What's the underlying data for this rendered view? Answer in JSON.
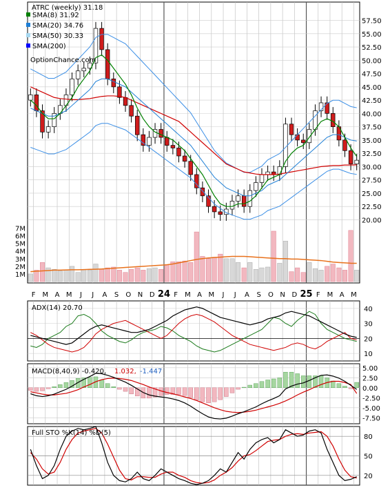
{
  "chart_data": {
    "type": "stock_chart",
    "symbol": "ATRC",
    "period": "weekly",
    "last_price": 31.18,
    "title": "ATRC (weekly) 31.18",
    "watermark": "OptionChance.com",
    "legend": [
      {
        "label": "SMA(8) 31.92",
        "color": "#008000"
      },
      {
        "label": "SMA(20) 34.76",
        "color": "#1e7fd6"
      },
      {
        "label": "SMA(50) 30.33",
        "color": "#a8d8f0"
      },
      {
        "label": "SMA(200)",
        "color": "#0000ff"
      }
    ],
    "x_labels": [
      "F",
      "M",
      "A",
      "M",
      "J",
      "J",
      "A",
      "S",
      "O",
      "N",
      "D",
      "24",
      "F",
      "M",
      "A",
      "M",
      "J",
      "J",
      "A",
      "S",
      "O",
      "N",
      "D",
      "25",
      "F",
      "M",
      "A",
      "M"
    ],
    "price_axis": {
      "ticks": [
        57.5,
        55.0,
        52.5,
        50.0,
        47.5,
        45.0,
        42.5,
        40.0,
        37.5,
        35.0,
        32.5,
        30.0,
        27.5,
        25.0,
        22.5,
        20.0
      ],
      "ylim": [
        18.5,
        59.0
      ]
    },
    "volume_axis": {
      "ticks": [
        "7M",
        "6M",
        "5M",
        "4M",
        "3M",
        "2M",
        "1M"
      ],
      "ylim_millions": [
        0,
        7.5
      ]
    },
    "price": {
      "close": [
        43.5,
        40.5,
        36.5,
        37.5,
        40.0,
        41.5,
        43.5,
        46.5,
        48.0,
        48.5,
        49.5,
        56.0,
        52.0,
        46.5,
        45.0,
        43.0,
        41.5,
        39.5,
        36.0,
        34.0,
        35.5,
        37.0,
        35.5,
        34.0,
        33.5,
        32.0,
        31.0,
        28.5,
        26.0,
        24.5,
        22.5,
        21.5,
        21.0,
        22.0,
        23.5,
        24.5,
        22.5,
        25.5,
        27.0,
        28.5,
        29.0,
        28.5,
        30.0,
        38.0,
        36.0,
        35.0,
        34.5,
        37.0,
        40.5,
        42.0,
        40.0,
        37.5,
        35.0,
        33.0,
        30.5,
        31.2
      ],
      "sma8": [
        42.5,
        41.5,
        40.0,
        39.0,
        39.0,
        40.0,
        41.5,
        43.0,
        45.0,
        46.5,
        48.0,
        50.5,
        51.0,
        50.0,
        48.5,
        47.0,
        45.5,
        43.5,
        41.0,
        39.0,
        37.5,
        36.5,
        36.0,
        35.5,
        35.0,
        34.0,
        33.0,
        31.5,
        30.0,
        28.5,
        26.5,
        24.5,
        23.0,
        22.5,
        22.5,
        23.0,
        23.0,
        23.5,
        24.5,
        26.0,
        27.5,
        28.0,
        28.5,
        31.0,
        32.5,
        33.5,
        34.0,
        35.5,
        37.0,
        38.5,
        39.0,
        38.5,
        37.5,
        35.5,
        33.5,
        31.9
      ],
      "sma20": [
        41.0,
        40.5,
        40.0,
        39.5,
        39.5,
        40.0,
        40.5,
        41.5,
        42.5,
        43.5,
        44.5,
        46.0,
        46.5,
        46.5,
        46.0,
        45.5,
        45.0,
        44.0,
        43.0,
        42.0,
        41.0,
        40.0,
        39.0,
        38.0,
        37.0,
        36.0,
        35.0,
        34.0,
        32.5,
        31.0,
        29.5,
        28.0,
        27.0,
        26.0,
        25.5,
        25.0,
        24.5,
        24.5,
        25.0,
        25.5,
        26.5,
        27.0,
        27.5,
        28.5,
        29.5,
        30.5,
        31.5,
        32.5,
        33.5,
        34.5,
        35.5,
        36.0,
        36.0,
        35.5,
        35.0,
        34.8
      ],
      "sma50": [
        45.0,
        44.5,
        44.0,
        43.5,
        43.0,
        42.8,
        42.7,
        42.6,
        42.6,
        42.7,
        42.8,
        43.0,
        43.2,
        43.3,
        43.3,
        43.2,
        43.0,
        42.5,
        42.0,
        41.5,
        41.0,
        40.5,
        40.0,
        39.5,
        39.0,
        38.5,
        37.5,
        36.5,
        35.5,
        34.5,
        33.5,
        32.5,
        31.5,
        30.5,
        30.0,
        29.5,
        29.0,
        28.8,
        28.6,
        28.5,
        28.5,
        28.5,
        28.6,
        28.8,
        29.0,
        29.2,
        29.4,
        29.6,
        29.8,
        30.0,
        30.1,
        30.2,
        30.2,
        30.3,
        30.3,
        30.33
      ],
      "sma200": [
        null,
        null,
        null,
        null,
        null,
        null,
        null,
        null,
        null,
        null,
        null,
        null,
        null,
        null,
        null,
        null,
        null,
        null,
        null,
        null,
        null,
        null,
        null,
        null,
        null,
        null,
        null,
        null,
        null,
        null,
        null,
        null,
        null,
        null,
        null,
        null,
        null,
        null,
        null,
        null,
        null,
        null,
        null,
        null,
        null,
        null,
        null,
        null,
        null,
        null,
        null,
        null,
        null,
        null,
        null,
        null
      ]
    },
    "volume_millions": [
      1.0,
      1.5,
      2.5,
      1.8,
      1.6,
      1.4,
      1.5,
      2.0,
      1.2,
      1.6,
      1.5,
      2.3,
      1.6,
      1.8,
      1.9,
      1.5,
      1.2,
      1.6,
      1.8,
      1.5,
      1.7,
      1.8,
      1.6,
      2.2,
      2.6,
      2.6,
      2.7,
      2.5,
      6.5,
      3.3,
      3.0,
      3.2,
      3.6,
      3.0,
      3.0,
      2.5,
      1.8,
      2.5,
      1.6,
      1.8,
      1.9,
      6.6,
      2.4,
      5.3,
      1.3,
      1.8,
      1.2,
      2.5,
      1.7,
      1.5,
      2.0,
      2.3,
      1.8,
      1.5,
      6.7,
      1.5
    ],
    "volume_avg_millions": [
      1.3,
      1.35,
      1.4,
      1.45,
      1.5,
      1.5,
      1.52,
      1.55,
      1.55,
      1.57,
      1.6,
      1.62,
      1.65,
      1.7,
      1.75,
      1.8,
      1.85,
      1.9,
      1.95,
      2.0,
      2.05,
      2.1,
      2.15,
      2.2,
      2.3,
      2.45,
      2.6,
      2.75,
      2.9,
      3.0,
      3.1,
      3.15,
      3.2,
      3.25,
      3.3,
      3.3,
      3.3,
      3.25,
      3.2,
      3.15,
      3.1,
      3.05,
      3.0,
      3.0,
      2.95,
      2.95,
      2.9,
      2.85,
      2.8,
      2.75,
      2.65,
      2.55,
      2.5,
      2.45,
      2.4,
      2.4
    ],
    "indicators": {
      "adx": {
        "label": "ADX(14) 20.70",
        "ticks": [
          40,
          30,
          20,
          10
        ],
        "ylim": [
          5,
          45
        ],
        "adx": [
          22,
          21,
          20,
          19,
          18,
          17,
          16,
          17,
          20,
          23,
          26,
          28,
          29,
          28,
          27,
          26,
          25,
          24,
          24,
          25,
          26,
          28,
          30,
          32,
          35,
          37,
          39,
          40,
          41,
          40,
          38,
          36,
          34,
          33,
          32,
          31,
          30,
          29,
          30,
          31,
          33,
          34,
          35,
          37,
          38,
          37,
          36,
          35,
          33,
          31,
          29,
          27,
          25,
          23,
          21.5,
          20.7
        ],
        "plus_di": [
          15,
          14,
          16,
          20,
          22,
          24,
          28,
          30,
          35,
          36,
          34,
          30,
          25,
          22,
          20,
          18,
          17,
          19,
          22,
          24,
          25,
          26,
          28,
          27,
          25,
          22,
          20,
          18,
          15,
          13,
          12,
          11,
          12,
          14,
          16,
          18,
          20,
          22,
          24,
          26,
          30,
          34,
          33,
          30,
          28,
          32,
          35,
          38,
          36,
          30,
          26,
          24,
          22,
          20,
          19,
          18
        ],
        "minus_di": [
          24,
          22,
          19,
          16,
          14,
          13,
          12,
          11,
          12,
          14,
          18,
          23,
          26,
          28,
          30,
          31,
          32,
          30,
          28,
          26,
          24,
          22,
          20,
          22,
          26,
          30,
          33,
          35,
          36,
          35,
          33,
          31,
          28,
          25,
          22,
          20,
          18,
          16,
          15,
          14,
          13,
          12,
          13,
          14,
          16,
          17,
          16,
          14,
          13,
          15,
          18,
          20,
          22,
          24,
          20,
          19
        ]
      },
      "macd": {
        "label": "MACD(8,40,9) -0.420,",
        "macd_value": "1.032,",
        "signal_value": "-1.447",
        "ticks": [
          5.0,
          2.5,
          0.0,
          -2.5,
          -5.0,
          -7.5
        ],
        "ylim": [
          -9.0,
          6.0
        ],
        "macd": [
          -1.5,
          -2.0,
          -2.2,
          -2.0,
          -1.6,
          -1.0,
          -0.4,
          0.4,
          1.3,
          2.1,
          2.8,
          3.6,
          3.5,
          3.1,
          2.6,
          2.0,
          1.4,
          0.6,
          -0.3,
          -1.2,
          -1.8,
          -2.1,
          -2.3,
          -2.5,
          -2.8,
          -3.2,
          -3.8,
          -4.6,
          -5.6,
          -6.5,
          -7.3,
          -7.7,
          -7.8,
          -7.6,
          -7.1,
          -6.5,
          -6.0,
          -5.4,
          -4.8,
          -4.0,
          -3.3,
          -2.7,
          -2.0,
          -0.3,
          0.4,
          0.9,
          1.2,
          1.8,
          2.5,
          3.1,
          3.2,
          2.9,
          2.4,
          1.6,
          0.6,
          -0.42
        ],
        "signal": [
          -1.0,
          -1.3,
          -1.6,
          -1.8,
          -1.8,
          -1.6,
          -1.4,
          -1.0,
          -0.5,
          0.2,
          0.8,
          1.5,
          2.0,
          2.3,
          2.4,
          2.3,
          2.1,
          1.8,
          1.3,
          0.8,
          0.2,
          -0.3,
          -0.8,
          -1.2,
          -1.5,
          -1.9,
          -2.3,
          -2.7,
          -3.2,
          -3.8,
          -4.4,
          -5.0,
          -5.5,
          -5.9,
          -6.1,
          -6.2,
          -6.1,
          -5.9,
          -5.6,
          -5.2,
          -4.8,
          -4.4,
          -3.9,
          -3.3,
          -2.6,
          -1.8,
          -1.1,
          -0.5,
          0.2,
          0.8,
          1.3,
          1.6,
          1.6,
          1.3,
          0.8,
          -1.447
        ]
      },
      "stochastic": {
        "label": "Full STO %K(14) %D(5)",
        "ticks": [
          80,
          50,
          20
        ],
        "ylim": [
          5,
          95
        ],
        "k": [
          60,
          35,
          15,
          20,
          35,
          60,
          80,
          88,
          92,
          90,
          92,
          95,
          70,
          40,
          20,
          12,
          10,
          15,
          25,
          15,
          12,
          20,
          30,
          25,
          20,
          15,
          12,
          8,
          6,
          8,
          12,
          20,
          30,
          25,
          40,
          55,
          45,
          60,
          70,
          75,
          78,
          70,
          75,
          90,
          85,
          80,
          82,
          88,
          90,
          85,
          60,
          40,
          20,
          12,
          14,
          18
        ],
        "d": [
          55,
          45,
          30,
          22,
          25,
          40,
          60,
          75,
          85,
          88,
          90,
          92,
          85,
          68,
          48,
          28,
          15,
          13,
          18,
          18,
          17,
          17,
          22,
          25,
          25,
          20,
          17,
          12,
          9,
          8,
          9,
          13,
          20,
          25,
          32,
          42,
          50,
          52,
          58,
          65,
          72,
          74,
          75,
          80,
          83,
          84,
          83,
          85,
          86,
          87,
          80,
          65,
          45,
          28,
          18,
          16
        ]
      }
    }
  }
}
